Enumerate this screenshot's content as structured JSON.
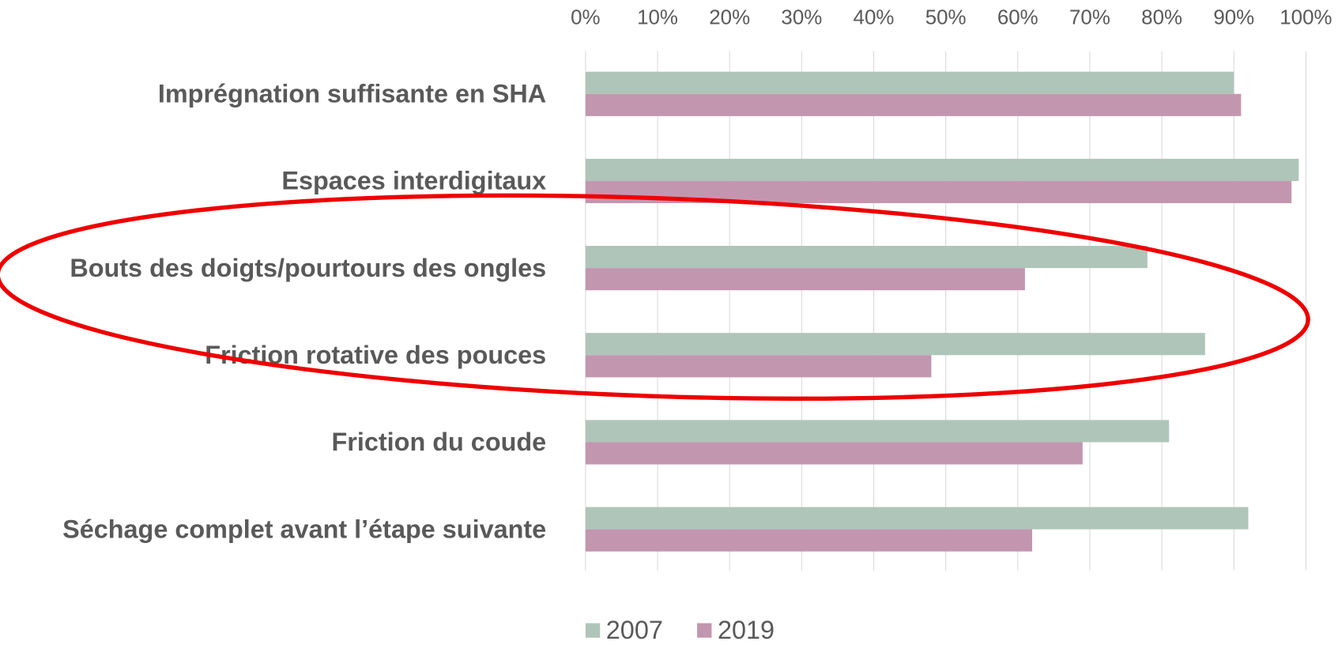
{
  "chart_data": {
    "type": "bar",
    "orientation": "horizontal",
    "categories": [
      "Imprégnation suffisante en SHA",
      "Espaces interdigitaux",
      "Bouts des doigts/pourtours des ongles",
      "Friction rotative des pouces",
      "Friction du coude",
      "Séchage complet avant l’étape suivante"
    ],
    "series": [
      {
        "name": "2007",
        "color": "#afc5b9",
        "values": [
          90,
          99,
          78,
          86,
          81,
          92
        ]
      },
      {
        "name": "2019",
        "color": "#c396b0",
        "values": [
          91,
          98,
          61,
          48,
          69,
          62
        ]
      }
    ],
    "xlim": [
      0,
      100
    ],
    "xticks": [
      {
        "value": 0,
        "label": "0%"
      },
      {
        "value": 10,
        "label": "10%"
      },
      {
        "value": 20,
        "label": "20%"
      },
      {
        "value": 30,
        "label": "30%"
      },
      {
        "value": 40,
        "label": "40%"
      },
      {
        "value": 50,
        "label": "50%"
      },
      {
        "value": 60,
        "label": "60%"
      },
      {
        "value": 70,
        "label": "70%"
      },
      {
        "value": 80,
        "label": "80%"
      },
      {
        "value": 90,
        "label": "90%"
      },
      {
        "value": 100,
        "label": "100%"
      }
    ],
    "grid": true,
    "legend": "bottom"
  }
}
